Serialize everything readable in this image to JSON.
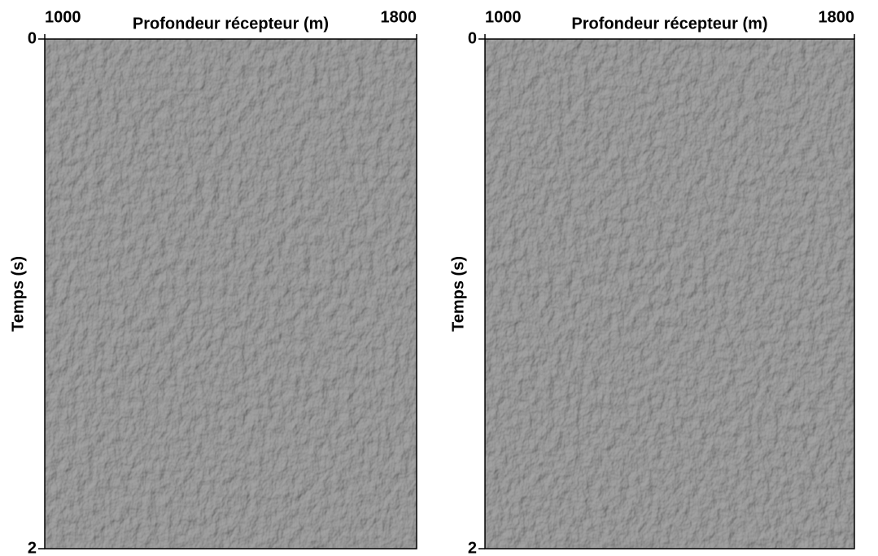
{
  "chart_data": [
    {
      "type": "image",
      "xlabel": "Profondeur récepteur (m)",
      "ylabel": "Temps (s)",
      "xlim": [
        1000,
        1800
      ],
      "xticks": [
        1000,
        1800
      ],
      "ylim": [
        0,
        2
      ],
      "yticks": [
        0,
        2
      ]
    },
    {
      "type": "image",
      "xlabel": "Profondeur récepteur (m)",
      "ylabel": "Temps (s)",
      "xlim": [
        1000,
        1800
      ],
      "xticks": [
        1000,
        1800
      ],
      "ylim": [
        0,
        2
      ],
      "yticks": [
        0,
        2
      ]
    }
  ]
}
